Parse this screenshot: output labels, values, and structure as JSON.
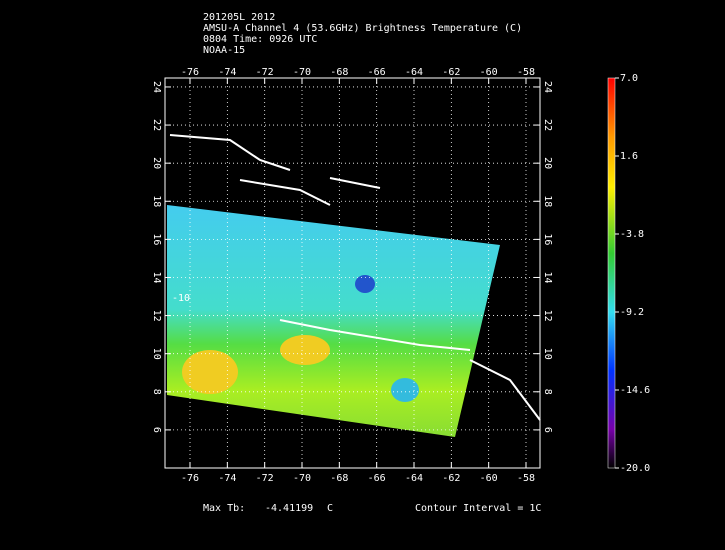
{
  "chart_data": {
    "type": "map",
    "title_lines": [
      "201205L 2012",
      "AMSU-A Channel 4 (53.6GHz) Brightness Temperature (C)",
      "0804 Time: 0926 UTC",
      "NOAA-15"
    ],
    "xlim": [
      -77.34,
      -57.25
    ],
    "ylim": [
      4.0,
      24.47
    ],
    "xticks": [
      -76,
      -74,
      -72,
      -70,
      -68,
      -66,
      -64,
      -62,
      -60,
      -58
    ],
    "yticks": [
      6,
      8,
      10,
      12,
      14,
      16,
      18,
      20,
      22,
      24
    ],
    "grid": true,
    "annotations": [
      "-10"
    ],
    "colorbar": {
      "lim": [
        -20,
        7
      ],
      "ticks": [
        {
          "value": 7,
          "label": "7.0"
        },
        1.6,
        -3.8,
        -9.2,
        -14.6,
        {
          "value": -20,
          "label": "-20.0"
        }
      ]
    },
    "footer": {
      "max_label": "Max Tb:",
      "max_value": "-4.41199",
      "max_unit": "C",
      "contour": "Contour Interval = 1C"
    }
  }
}
